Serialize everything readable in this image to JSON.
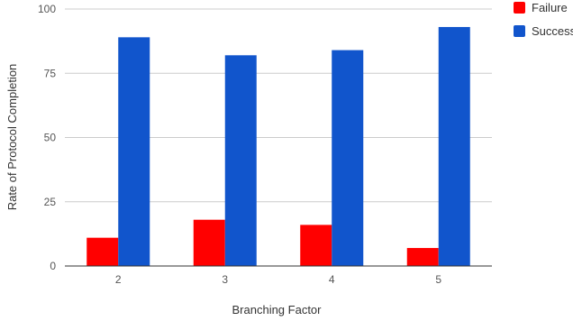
{
  "chart_data": {
    "type": "bar",
    "title": "",
    "xlabel": "Branching Factor",
    "ylabel": "Rate of Protocol Completion",
    "categories": [
      "2",
      "3",
      "4",
      "5"
    ],
    "series": [
      {
        "name": "Failure",
        "color": "#ff0000",
        "values": [
          11,
          18,
          16,
          7
        ]
      },
      {
        "name": "Success",
        "color": "#1155cc",
        "values": [
          89,
          82,
          84,
          93
        ]
      }
    ],
    "ylim": [
      0,
      100
    ],
    "yticks": [
      "0",
      "25",
      "50",
      "75",
      "100"
    ],
    "grid": true,
    "legend_position": "top-right"
  }
}
